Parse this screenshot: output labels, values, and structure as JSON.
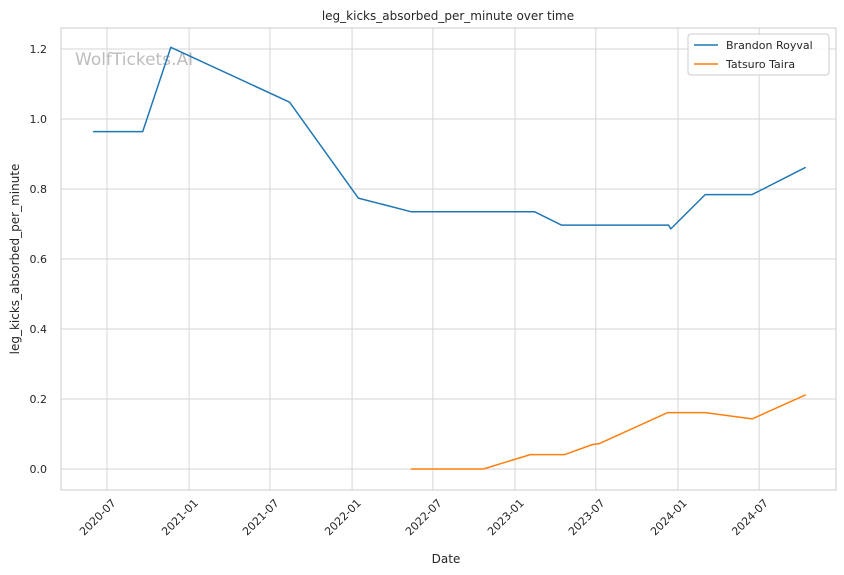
{
  "chart_data": {
    "type": "line",
    "title": "leg_kicks_absorbed_per_minute over time",
    "xlabel": "Date",
    "ylabel": "leg_kicks_absorbed_per_minute",
    "watermark": "WolfTickets.AI",
    "x_ticks": [
      "2020-07",
      "2021-01",
      "2021-07",
      "2022-01",
      "2022-07",
      "2023-01",
      "2023-07",
      "2024-01",
      "2024-07"
    ],
    "y_ticks": [
      "0.0",
      "0.2",
      "0.4",
      "0.6",
      "0.8",
      "1.0",
      "1.2"
    ],
    "xlim": [
      "2020-03-20",
      "2024-12-20"
    ],
    "ylim": [
      -0.06,
      1.26
    ],
    "grid": true,
    "legend_position": "top-right",
    "series": [
      {
        "name": "Brandon Royval",
        "color": "#1f77b4",
        "points": [
          {
            "x": "2020-06-01",
            "y": 0.964
          },
          {
            "x": "2020-09-19",
            "y": 0.964
          },
          {
            "x": "2020-11-21",
            "y": 1.205
          },
          {
            "x": "2021-08-14",
            "y": 1.048
          },
          {
            "x": "2022-01-15",
            "y": 0.774
          },
          {
            "x": "2022-05-14",
            "y": 0.735
          },
          {
            "x": "2023-02-14",
            "y": 0.735
          },
          {
            "x": "2023-04-15",
            "y": 0.697
          },
          {
            "x": "2023-12-11",
            "y": 0.697
          },
          {
            "x": "2023-12-16",
            "y": 0.686
          },
          {
            "x": "2024-03-02",
            "y": 0.784
          },
          {
            "x": "2024-06-15",
            "y": 0.784
          },
          {
            "x": "2024-10-12",
            "y": 0.861
          }
        ]
      },
      {
        "name": "Tatsuro Taira",
        "color": "#ff7f0e",
        "points": [
          {
            "x": "2022-05-14",
            "y": 0.0
          },
          {
            "x": "2022-10-22",
            "y": 0.0
          },
          {
            "x": "2023-02-04",
            "y": 0.041
          },
          {
            "x": "2023-04-22",
            "y": 0.041
          },
          {
            "x": "2023-06-24",
            "y": 0.07
          },
          {
            "x": "2023-07-08",
            "y": 0.072
          },
          {
            "x": "2023-12-09",
            "y": 0.161
          },
          {
            "x": "2024-03-02",
            "y": 0.161
          },
          {
            "x": "2024-06-15",
            "y": 0.143
          },
          {
            "x": "2024-10-12",
            "y": 0.211
          }
        ]
      }
    ]
  }
}
